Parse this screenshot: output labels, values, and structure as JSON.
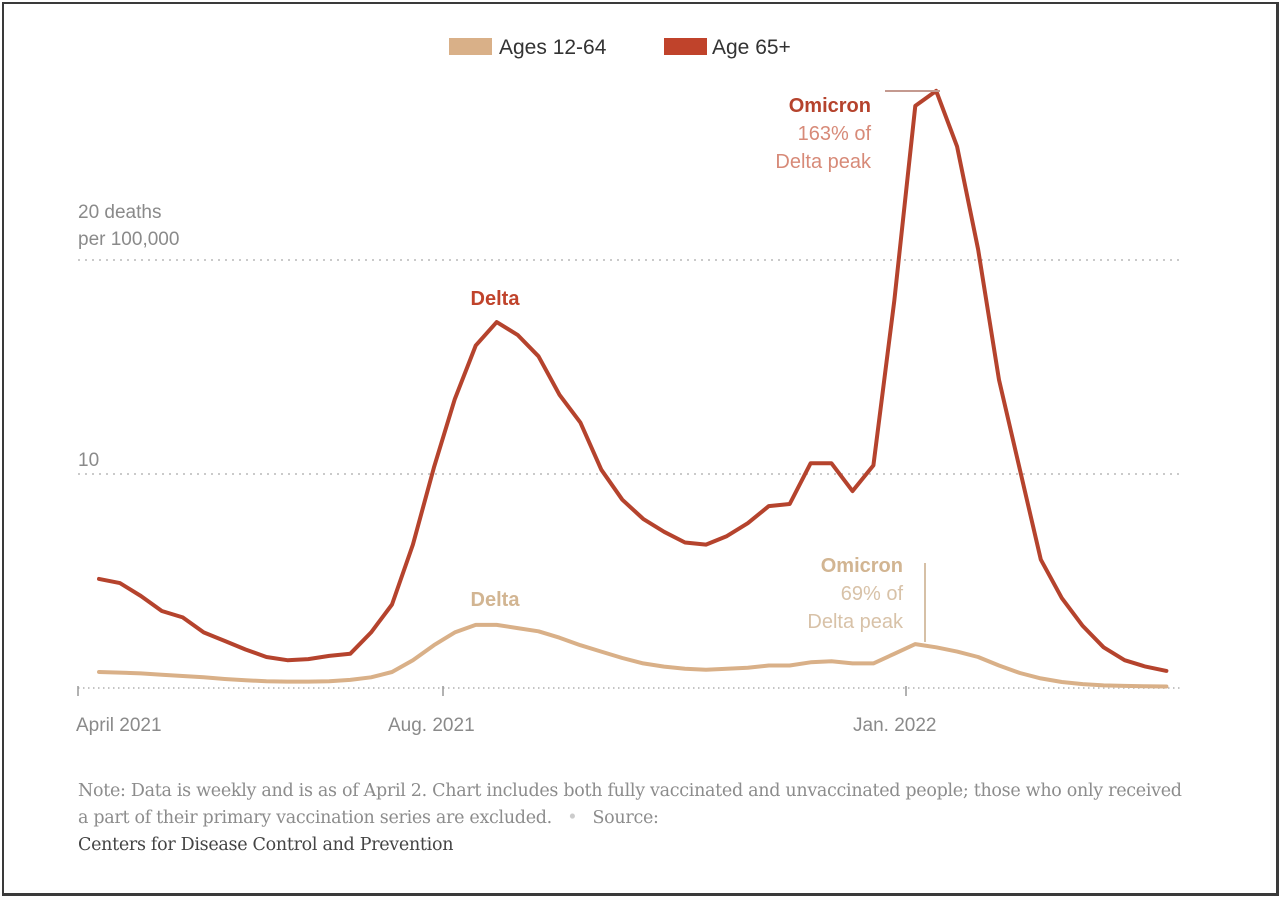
{
  "legend": {
    "items": [
      {
        "label": "Ages 12-64",
        "color": "#d9b088"
      },
      {
        "label": "Age 65+",
        "color": "#c0432b"
      }
    ]
  },
  "y_axis": {
    "label_line1": "20 deaths",
    "label_line2": "per 100,000",
    "tick_10": "10"
  },
  "x_axis": {
    "ticks": [
      "April 2021",
      "Aug. 2021",
      "Jan. 2022"
    ]
  },
  "annotations": {
    "red_delta": "Delta",
    "red_omicron_title": "Omicron",
    "red_omicron_line1": "163% of",
    "red_omicron_line2": "Delta peak",
    "tan_delta": "Delta",
    "tan_omicron_title": "Omicron",
    "tan_omicron_line1": "69% of",
    "tan_omicron_line2": "Delta peak"
  },
  "footer": {
    "note": "Note: Data is weekly and is as of April 2. Chart includes both fully vaccinated and unvaccinated people; those who only received a part of their primary vaccination series are excluded.",
    "separator": "•",
    "source_label": "Source:",
    "source_name": "Centers for Disease Control and Prevention"
  },
  "chart_data": {
    "type": "line",
    "title": "",
    "xlabel": "",
    "ylabel": "deaths per 100,000",
    "ylim": [
      0,
      28
    ],
    "y_ticks": [
      10,
      20
    ],
    "grid": true,
    "legend_position": "top-center",
    "x_tick_labels": [
      {
        "label": "April 2021",
        "week_index": 0
      },
      {
        "label": "Aug. 2021",
        "week_index": 17.5
      },
      {
        "label": "Jan. 2022",
        "week_index": 39.7
      }
    ],
    "x_week_start": 1,
    "x_weeks_total": 53,
    "series": [
      {
        "name": "Age 65+",
        "color": "#c0432b",
        "values": [
          5.1,
          4.9,
          4.3,
          3.6,
          3.3,
          2.6,
          2.2,
          1.8,
          1.45,
          1.3,
          1.35,
          1.5,
          1.6,
          2.6,
          3.9,
          6.7,
          10.3,
          13.5,
          16.0,
          17.1,
          16.5,
          15.5,
          13.7,
          12.4,
          10.2,
          8.8,
          7.9,
          7.3,
          6.8,
          6.7,
          7.1,
          7.7,
          8.5,
          8.6,
          10.5,
          10.5,
          9.2,
          10.4,
          18.1,
          27.2,
          27.9,
          25.3,
          20.5,
          14.4,
          10.2,
          6.0,
          4.2,
          2.9,
          1.9,
          1.3,
          1.0,
          0.8
        ]
      },
      {
        "name": "Ages 12-64",
        "color": "#d9b088",
        "values": [
          0.75,
          0.72,
          0.68,
          0.62,
          0.56,
          0.5,
          0.42,
          0.36,
          0.32,
          0.3,
          0.3,
          0.32,
          0.38,
          0.5,
          0.75,
          1.3,
          2.0,
          2.6,
          2.95,
          2.95,
          2.8,
          2.65,
          2.35,
          2.0,
          1.7,
          1.4,
          1.15,
          1.0,
          0.9,
          0.85,
          0.9,
          0.95,
          1.05,
          1.05,
          1.2,
          1.25,
          1.15,
          1.15,
          1.6,
          2.05,
          1.9,
          1.7,
          1.45,
          1.05,
          0.7,
          0.45,
          0.28,
          0.18,
          0.12,
          0.1,
          0.08,
          0.07
        ]
      }
    ],
    "annotations": [
      {
        "series": "Age 65+",
        "text": "Delta",
        "at_week": 19
      },
      {
        "series": "Age 65+",
        "text": "Omicron 163% of Delta peak",
        "at_week": 40
      },
      {
        "series": "Ages 12-64",
        "text": "Delta",
        "at_week": 19
      },
      {
        "series": "Ages 12-64",
        "text": "Omicron 69% of Delta peak",
        "at_week": 39
      }
    ]
  }
}
